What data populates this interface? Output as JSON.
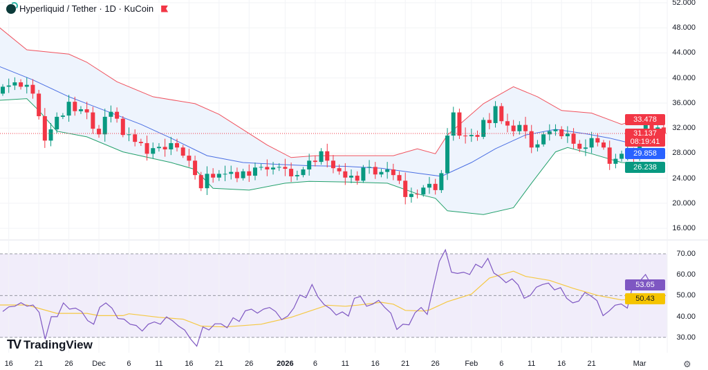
{
  "header": {
    "title": "Hyperliquid / Tether · 1D · KuCoin",
    "flag_color": "#f23645"
  },
  "branding": {
    "logo_text": "TradingView"
  },
  "price_axis": {
    "ticks": [
      "52.000",
      "48.000",
      "44.000",
      "40.000",
      "36.000",
      "32.000",
      "28.000",
      "24.000",
      "20.000",
      "16.000"
    ]
  },
  "price_tags": {
    "upper_band": "33.478",
    "last_price": "31.137",
    "countdown": "08:19:41",
    "basis": "29.858",
    "lower_band": "26.238"
  },
  "rsi_axis": {
    "ticks": [
      "70.00",
      "60.00",
      "50.00",
      "40.00",
      "30.00"
    ]
  },
  "rsi_tags": {
    "rsi": "53.65",
    "rsi_ma": "50.43"
  },
  "time_axis": {
    "ticks": [
      {
        "label": "16",
        "date": "2025-11-16"
      },
      {
        "label": "21",
        "date": "2025-11-21"
      },
      {
        "label": "26",
        "date": "2025-11-26"
      },
      {
        "label": "Dec",
        "date": "2025-12-01"
      },
      {
        "label": "6",
        "date": "2025-12-06"
      },
      {
        "label": "11",
        "date": "2025-12-11"
      },
      {
        "label": "16",
        "date": "2025-12-16"
      },
      {
        "label": "21",
        "date": "2025-12-21"
      },
      {
        "label": "26",
        "date": "2025-12-26"
      },
      {
        "label": "2026",
        "date": "2026-01-01",
        "bold": true
      },
      {
        "label": "6",
        "date": "2026-01-06"
      },
      {
        "label": "11",
        "date": "2026-01-11"
      },
      {
        "label": "16",
        "date": "2026-01-16"
      },
      {
        "label": "21",
        "date": "2026-01-21"
      },
      {
        "label": "26",
        "date": "2026-01-26"
      },
      {
        "label": "Feb",
        "date": "2026-02-01"
      },
      {
        "label": "6",
        "date": "2026-02-06"
      },
      {
        "label": "11",
        "date": "2026-02-11"
      },
      {
        "label": "16",
        "date": "2026-02-16"
      },
      {
        "label": "21",
        "date": "2026-02-21"
      },
      {
        "label": "Mar",
        "date": "2026-03-01"
      }
    ]
  },
  "colors": {
    "up": "#089981",
    "down": "#f23645",
    "upper_band": "#f0525e",
    "basis": "#4a6fe3",
    "lower_band": "#22a06b",
    "band_fill": "#eef4fd",
    "rsi_line": "#7e57c2",
    "rsi_ma": "#f5c842",
    "rsi_bg": "#f1edfa"
  },
  "chart_data": {
    "type": "candlestick",
    "price_range": [
      16,
      52
    ],
    "first_open": 37.5,
    "closes": [
      [
        "2025-11-15",
        38.6
      ],
      [
        "2025-11-16",
        38.8
      ],
      [
        "2025-11-17",
        39.3
      ],
      [
        "2025-11-18",
        38.6
      ],
      [
        "2025-11-19",
        38.9
      ],
      [
        "2025-11-20",
        37.5
      ],
      [
        "2025-11-21",
        33.9
      ],
      [
        "2025-11-22",
        30.0
      ],
      [
        "2025-11-23",
        31.8
      ],
      [
        "2025-11-24",
        33.8
      ],
      [
        "2025-11-25",
        34.0
      ],
      [
        "2025-11-26",
        36.2
      ],
      [
        "2025-11-27",
        34.7
      ],
      [
        "2025-11-28",
        35.0
      ],
      [
        "2025-11-29",
        34.5
      ],
      [
        "2025-11-30",
        31.9
      ],
      [
        "2025-12-01",
        31.0
      ],
      [
        "2025-12-02",
        33.8
      ],
      [
        "2025-12-03",
        34.6
      ],
      [
        "2025-12-04",
        33.5
      ],
      [
        "2025-12-05",
        30.9
      ],
      [
        "2025-12-06",
        31.0
      ],
      [
        "2025-12-07",
        29.8
      ],
      [
        "2025-12-08",
        29.6
      ],
      [
        "2025-12-09",
        27.9
      ],
      [
        "2025-12-10",
        28.8
      ],
      [
        "2025-12-11",
        29.0
      ],
      [
        "2025-12-12",
        28.6
      ],
      [
        "2025-12-13",
        29.6
      ],
      [
        "2025-12-14",
        28.9
      ],
      [
        "2025-12-15",
        27.6
      ],
      [
        "2025-12-16",
        26.8
      ],
      [
        "2025-12-17",
        24.5
      ],
      [
        "2025-12-18",
        22.4
      ],
      [
        "2025-12-19",
        24.7
      ],
      [
        "2025-12-20",
        24.1
      ],
      [
        "2025-12-21",
        24.7
      ],
      [
        "2025-12-22",
        24.7
      ],
      [
        "2025-12-23",
        25.0
      ],
      [
        "2025-12-24",
        24.0
      ],
      [
        "2025-12-25",
        25.1
      ],
      [
        "2025-12-26",
        24.4
      ],
      [
        "2025-12-27",
        25.7
      ],
      [
        "2025-12-28",
        25.8
      ],
      [
        "2025-12-29",
        25.4
      ],
      [
        "2025-12-30",
        25.7
      ],
      [
        "2025-12-31",
        25.8
      ],
      [
        "2026-01-01",
        25.5
      ],
      [
        "2026-01-02",
        24.3
      ],
      [
        "2026-01-03",
        24.5
      ],
      [
        "2026-01-04",
        25.4
      ],
      [
        "2026-01-05",
        26.8
      ],
      [
        "2026-01-06",
        26.6
      ],
      [
        "2026-01-07",
        28.3
      ],
      [
        "2026-01-08",
        26.8
      ],
      [
        "2026-01-09",
        25.6
      ],
      [
        "2026-01-10",
        25.1
      ],
      [
        "2026-01-11",
        24.1
      ],
      [
        "2026-01-12",
        24.4
      ],
      [
        "2026-01-13",
        23.6
      ],
      [
        "2026-01-14",
        25.7
      ],
      [
        "2026-01-15",
        25.8
      ],
      [
        "2026-01-16",
        24.6
      ],
      [
        "2026-01-17",
        25.0
      ],
      [
        "2026-01-18",
        25.4
      ],
      [
        "2026-01-19",
        24.5
      ],
      [
        "2026-01-20",
        23.6
      ],
      [
        "2026-01-21",
        21.0
      ],
      [
        "2026-01-22",
        21.5
      ],
      [
        "2026-01-23",
        21.4
      ],
      [
        "2026-01-24",
        22.5
      ],
      [
        "2026-01-25",
        23.1
      ],
      [
        "2026-01-26",
        22.1
      ],
      [
        "2026-01-27",
        24.8
      ],
      [
        "2026-01-28",
        30.8
      ],
      [
        "2026-01-29",
        34.5
      ],
      [
        "2026-01-30",
        30.8
      ],
      [
        "2026-01-31",
        30.7
      ],
      [
        "2026-02-01",
        30.9
      ],
      [
        "2026-02-02",
        30.6
      ],
      [
        "2026-02-03",
        33.3
      ],
      [
        "2026-02-04",
        32.8
      ],
      [
        "2026-02-05",
        35.5
      ],
      [
        "2026-02-06",
        33.1
      ],
      [
        "2026-02-07",
        32.4
      ],
      [
        "2026-02-08",
        31.5
      ],
      [
        "2026-02-09",
        32.5
      ],
      [
        "2026-02-10",
        31.5
      ],
      [
        "2026-02-11",
        28.9
      ],
      [
        "2026-02-12",
        29.4
      ],
      [
        "2026-02-13",
        31.0
      ],
      [
        "2026-02-14",
        31.5
      ],
      [
        "2026-02-15",
        31.8
      ],
      [
        "2026-02-16",
        30.7
      ],
      [
        "2026-02-17",
        31.1
      ],
      [
        "2026-02-18",
        29.5
      ],
      [
        "2026-02-19",
        28.7
      ],
      [
        "2026-02-20",
        28.9
      ],
      [
        "2026-02-21",
        30.4
      ],
      [
        "2026-02-22",
        29.7
      ],
      [
        "2026-02-23",
        28.9
      ],
      [
        "2026-02-24",
        26.3
      ],
      [
        "2026-02-25",
        27.1
      ],
      [
        "2026-02-26",
        27.9
      ],
      [
        "2026-02-27",
        28.0
      ],
      [
        "2026-02-28",
        27.3
      ],
      [
        "2026-03-01",
        31.1
      ],
      [
        "2026-03-02",
        32.8
      ],
      [
        "2026-03-03",
        31.3
      ],
      [
        "2026-03-04",
        32.1
      ],
      [
        "2026-03-05",
        31.137
      ]
    ],
    "last_price": 31.137,
    "bollinger": {
      "upper": [
        [
          "2025-11-14",
          48.4
        ],
        [
          "2025-11-19",
          44.5
        ],
        [
          "2025-11-26",
          43.8
        ],
        [
          "2025-11-29",
          42.5
        ],
        [
          "2025-12-04",
          39.4
        ],
        [
          "2025-12-10",
          37.0
        ],
        [
          "2025-12-17",
          35.9
        ],
        [
          "2025-12-21",
          34.2
        ],
        [
          "2025-12-29",
          29.3
        ],
        [
          "2026-01-02",
          27.3
        ],
        [
          "2026-01-06",
          27.6
        ],
        [
          "2026-01-19",
          27.6
        ],
        [
          "2026-01-23",
          28.7
        ],
        [
          "2026-01-26",
          27.9
        ],
        [
          "2026-01-28",
          30.9
        ],
        [
          "2026-02-03",
          35.9
        ],
        [
          "2026-02-08",
          38.6
        ],
        [
          "2026-02-12",
          37.0
        ],
        [
          "2026-02-16",
          34.8
        ],
        [
          "2026-02-21",
          34.4
        ],
        [
          "2026-02-26",
          32.6
        ],
        [
          "2026-03-01",
          33.5
        ],
        [
          "2026-03-05",
          33.478
        ]
      ],
      "basis": [
        [
          "2025-11-14",
          42.0
        ],
        [
          "2025-11-20",
          39.7
        ],
        [
          "2025-11-26",
          37.0
        ],
        [
          "2025-12-02",
          34.8
        ],
        [
          "2025-12-08",
          32.6
        ],
        [
          "2025-12-13",
          30.4
        ],
        [
          "2025-12-19",
          27.6
        ],
        [
          "2025-12-25",
          26.5
        ],
        [
          "2025-12-31",
          26.2
        ],
        [
          "2026-01-05",
          26.0
        ],
        [
          "2026-01-11",
          25.9
        ],
        [
          "2026-01-17",
          25.6
        ],
        [
          "2026-01-23",
          24.8
        ],
        [
          "2026-01-27",
          24.3
        ],
        [
          "2026-02-01",
          26.5
        ],
        [
          "2026-02-05",
          28.7
        ],
        [
          "2026-02-10",
          30.9
        ],
        [
          "2026-02-15",
          31.8
        ],
        [
          "2026-02-20",
          31.1
        ],
        [
          "2026-02-24",
          30.4
        ],
        [
          "2026-02-27",
          29.7
        ],
        [
          "2026-03-05",
          29.858
        ]
      ],
      "lower": [
        [
          "2025-11-14",
          36.4
        ],
        [
          "2025-11-19",
          36.7
        ],
        [
          "2025-11-21",
          34.8
        ],
        [
          "2025-11-24",
          31.5
        ],
        [
          "2025-11-29",
          30.6
        ],
        [
          "2025-12-05",
          28.2
        ],
        [
          "2025-12-13",
          26.5
        ],
        [
          "2025-12-17",
          25.4
        ],
        [
          "2025-12-20",
          22.4
        ],
        [
          "2025-12-26",
          22.1
        ],
        [
          "2026-01-01",
          23.2
        ],
        [
          "2026-01-05",
          23.5
        ],
        [
          "2026-01-11",
          23.4
        ],
        [
          "2026-01-18",
          23.2
        ],
        [
          "2026-01-23",
          21.5
        ],
        [
          "2026-01-26",
          20.8
        ],
        [
          "2026-01-28",
          18.8
        ],
        [
          "2026-02-03",
          18.2
        ],
        [
          "2026-02-08",
          19.3
        ],
        [
          "2026-02-11",
          23.2
        ],
        [
          "2026-02-15",
          28.2
        ],
        [
          "2026-02-17",
          28.9
        ],
        [
          "2026-02-21",
          27.9
        ],
        [
          "2026-02-26",
          26.5
        ],
        [
          "2026-03-05",
          26.238
        ]
      ]
    },
    "rsi": {
      "range": [
        30,
        70
      ],
      "bands": [
        70,
        50,
        30
      ],
      "values": [
        42.4,
        44.6,
        44.9,
        46.6,
        44.9,
        45.5,
        42.0,
        29.1,
        39.9,
        39.9,
        46.5,
        43.5,
        44.0,
        42.4,
        38.0,
        36.3,
        44.4,
        46.5,
        44.0,
        39.0,
        38.7,
        36.3,
        35.7,
        33.0,
        36.3,
        37.4,
        36.3,
        39.8,
        37.9,
        35.4,
        33.5,
        29.1,
        25.8,
        35.0,
        33.5,
        36.5,
        36.5,
        34.6,
        39.4,
        37.6,
        42.7,
        43.5,
        41.6,
        43.5,
        44.3,
        42.4,
        38.5,
        40.2,
        44.0,
        50.3,
        49.0,
        55.3,
        49.3,
        45.7,
        43.8,
        40.7,
        42.2,
        40.2,
        48.7,
        49.6,
        44.9,
        45.9,
        47.7,
        44.3,
        41.6,
        33.8,
        36.3,
        36.0,
        41.8,
        44.3,
        41.0,
        54.0,
        66.4,
        71.9,
        61.2,
        60.6,
        61.2,
        60.1,
        65.0,
        63.4,
        67.8,
        60.8,
        58.9,
        56.2,
        58.0,
        55.1,
        48.7,
        50.1,
        54.0,
        55.3,
        56.0,
        52.7,
        53.8,
        48.7,
        46.5,
        47.4,
        51.5,
        49.8,
        47.6,
        40.4,
        42.6,
        45.4,
        46.0,
        44.0,
        56.0,
        56.7,
        60.1,
        54.9,
        57.1,
        53.65
      ],
      "ma": [
        [
          "2025-11-14",
          45.5
        ],
        [
          "2025-11-19",
          45.5
        ],
        [
          "2025-11-24",
          41.5
        ],
        [
          "2025-11-29",
          41.5
        ],
        [
          "2025-12-01",
          40.4
        ],
        [
          "2025-12-05",
          40.4
        ],
        [
          "2025-12-06",
          41.3
        ],
        [
          "2025-12-11",
          39.6
        ],
        [
          "2025-12-15",
          38.7
        ],
        [
          "2025-12-18",
          35.4
        ],
        [
          "2025-12-22",
          35.0
        ],
        [
          "2025-12-28",
          36.3
        ],
        [
          "2026-01-02",
          39.6
        ],
        [
          "2026-01-08",
          45.4
        ],
        [
          "2026-01-11",
          44.9
        ],
        [
          "2026-01-13",
          45.4
        ],
        [
          "2026-01-17",
          46.8
        ],
        [
          "2026-01-19",
          45.9
        ],
        [
          "2026-01-21",
          42.9
        ],
        [
          "2026-01-24",
          42.6
        ],
        [
          "2026-01-25",
          43.1
        ],
        [
          "2026-01-28",
          47.1
        ],
        [
          "2026-02-01",
          50.7
        ],
        [
          "2026-02-04",
          58.4
        ],
        [
          "2026-02-08",
          61.7
        ],
        [
          "2026-02-10",
          59.2
        ],
        [
          "2026-02-14",
          57.3
        ],
        [
          "2026-02-18",
          53.4
        ],
        [
          "2026-02-22",
          50.1
        ],
        [
          "2026-02-26",
          47.9
        ],
        [
          "2026-03-01",
          48.7
        ],
        [
          "2026-03-05",
          50.43
        ]
      ]
    }
  }
}
